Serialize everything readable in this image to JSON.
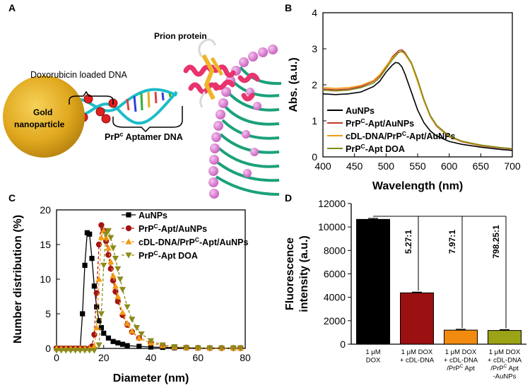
{
  "panels": {
    "a": "A",
    "b": "B",
    "c": "C",
    "d": "D"
  },
  "schematic": {
    "prion_label": "Prion protein",
    "dox_label": "Doxorubicin loaded DNA",
    "gold_line1": "Gold",
    "gold_line2": "nanoparticle",
    "aptamer_pre": "PrP",
    "aptamer_sup": "c",
    "aptamer_post": " Aptamer DNA"
  },
  "chart_data": [
    {
      "id": "B",
      "type": "line",
      "xlabel": "Wavelength (nm)",
      "ylabel": "Abs. (a.u.)",
      "xlim": [
        400,
        700
      ],
      "ylim": [
        0,
        4
      ],
      "xticks": [
        "400",
        "450",
        "500",
        "550",
        "600",
        "650",
        "700"
      ],
      "yticks": [
        "0",
        "1",
        "2",
        "3",
        "4"
      ],
      "legend_position": "bottom-left",
      "series": [
        {
          "name": "AuNPs",
          "label_pre": "AuNPs",
          "label_sup": "",
          "label_post": "",
          "color": "#000000",
          "x": [
            400,
            420,
            440,
            460,
            480,
            490,
            500,
            510,
            515,
            520,
            525,
            530,
            540,
            550,
            560,
            570,
            580,
            600,
            620,
            650,
            680,
            700
          ],
          "y": [
            1.75,
            1.73,
            1.75,
            1.8,
            1.95,
            2.1,
            2.35,
            2.55,
            2.62,
            2.6,
            2.5,
            2.3,
            1.8,
            1.3,
            0.95,
            0.72,
            0.58,
            0.43,
            0.35,
            0.27,
            0.21,
            0.18
          ]
        },
        {
          "name": "PrPC-Apt/AuNPs",
          "label_pre": "PrP",
          "label_sup": "C",
          "label_post": "-Apt/AuNPs",
          "color": "#c0392b",
          "x": [
            400,
            420,
            440,
            460,
            480,
            490,
            500,
            510,
            520,
            525,
            530,
            540,
            550,
            560,
            570,
            580,
            600,
            620,
            650,
            680,
            700
          ],
          "y": [
            1.88,
            1.86,
            1.88,
            1.95,
            2.1,
            2.25,
            2.5,
            2.78,
            2.95,
            2.97,
            2.9,
            2.6,
            2.1,
            1.55,
            1.12,
            0.85,
            0.56,
            0.42,
            0.31,
            0.25,
            0.22
          ]
        },
        {
          "name": "cDL-DNA/PrPC-Apt/AuNPs",
          "label_pre": "cDL-DNA/PrP",
          "label_sup": "C",
          "label_post": "-Apt/AuNPs",
          "color": "#f39c12",
          "x": [
            400,
            420,
            440,
            460,
            480,
            490,
            500,
            510,
            520,
            525,
            530,
            540,
            550,
            560,
            570,
            580,
            600,
            620,
            650,
            680,
            700
          ],
          "y": [
            1.92,
            1.9,
            1.92,
            1.98,
            2.12,
            2.28,
            2.52,
            2.75,
            2.9,
            2.92,
            2.85,
            2.58,
            2.08,
            1.55,
            1.13,
            0.86,
            0.57,
            0.43,
            0.32,
            0.26,
            0.23
          ]
        },
        {
          "name": "PrPC-Apt DOA",
          "label_pre": "PrP",
          "label_sup": "C",
          "label_post": "-Apt DOA",
          "color": "#7d8c1a",
          "x": [
            400,
            420,
            440,
            460,
            480,
            490,
            500,
            510,
            520,
            525,
            530,
            540,
            550,
            560,
            570,
            580,
            600,
            620,
            650,
            680,
            700
          ],
          "y": [
            1.85,
            1.83,
            1.85,
            1.92,
            2.05,
            2.2,
            2.45,
            2.7,
            2.9,
            2.93,
            2.88,
            2.62,
            2.15,
            1.6,
            1.15,
            0.88,
            0.58,
            0.44,
            0.33,
            0.26,
            0.23
          ]
        }
      ]
    },
    {
      "id": "C",
      "type": "line",
      "xlabel": "Diameter (nm)",
      "ylabel": "Number distribution (%)",
      "xlim": [
        0,
        80
      ],
      "ylim": [
        0,
        20
      ],
      "xticks": [
        "0",
        "20",
        "40",
        "60",
        "80"
      ],
      "yticks": [
        "0",
        "5",
        "10",
        "15",
        "20"
      ],
      "legend_position": "top-right",
      "series": [
        {
          "name": "AuNPs",
          "label_pre": "AuNPs",
          "label_sup": "",
          "label_post": "",
          "color": "#000000",
          "marker": "square",
          "x": [
            0,
            2,
            4,
            6,
            8,
            10,
            11,
            12,
            13,
            14,
            15,
            16,
            17,
            18,
            19,
            20,
            22,
            24,
            26,
            28,
            30,
            35,
            40,
            45,
            50,
            55,
            60,
            65,
            70,
            75,
            78
          ],
          "y": [
            0,
            0,
            0,
            0,
            0,
            0,
            5,
            12,
            16.7,
            16.5,
            13,
            9,
            6,
            4,
            3,
            2.2,
            1.5,
            1,
            0.8,
            0.6,
            0.4,
            0.3,
            0.2,
            0.15,
            0.1,
            0.1,
            0.05,
            0.05,
            0.05,
            0.05,
            0.05
          ]
        },
        {
          "name": "PrPC-Apt/AuNPs",
          "label_pre": "PrP",
          "label_sup": "C",
          "label_post": "-Apt/AuNPs",
          "color": "#a31515",
          "marker": "circle",
          "x": [
            0,
            2,
            4,
            6,
            8,
            10,
            12,
            14,
            15,
            16,
            17,
            18,
            19,
            20,
            21,
            22,
            23,
            24,
            25,
            26,
            28,
            30,
            32,
            35,
            40,
            45,
            50,
            55,
            60,
            65,
            70,
            75,
            78
          ],
          "y": [
            0,
            0,
            0,
            0,
            0,
            0,
            0,
            0,
            0.3,
            2,
            8,
            15,
            17.8,
            17,
            15.5,
            13.5,
            11.5,
            9.8,
            8.2,
            6.8,
            4.8,
            3.4,
            2.4,
            1.5,
            0.8,
            0.4,
            0.2,
            0.12,
            0.08,
            0.05,
            0.05,
            0.05,
            0.05
          ]
        },
        {
          "name": "cDL-DNA/PrPC-Apt/AuNPs",
          "label_pre": "cDL-DNA/PrP",
          "label_sup": "C",
          "label_post": "-Apt/AuNPs",
          "color": "#f39c12",
          "marker": "triangle-up",
          "x": [
            0,
            2,
            4,
            6,
            8,
            10,
            12,
            14,
            16,
            17,
            18,
            19,
            20,
            21,
            22,
            23,
            24,
            25,
            26,
            28,
            30,
            32,
            35,
            40,
            45,
            50,
            55,
            60,
            65,
            70,
            75,
            78
          ],
          "y": [
            0,
            0,
            0,
            0,
            0,
            0,
            0,
            0,
            0.3,
            3,
            10,
            16,
            17,
            16,
            14.5,
            12.5,
            10.5,
            9,
            7.5,
            5.2,
            3.6,
            2.5,
            1.5,
            0.8,
            0.4,
            0.2,
            0.12,
            0.08,
            0.05,
            0.05,
            0.05,
            0.05
          ]
        },
        {
          "name": "PrPC-Apt DOA",
          "label_pre": "PrP",
          "label_sup": "C",
          "label_post": "-Apt DOA",
          "color": "#8b8b1a",
          "marker": "triangle-down",
          "x": [
            0,
            2,
            4,
            6,
            8,
            10,
            12,
            14,
            16,
            18,
            19,
            20,
            21,
            22,
            23,
            24,
            25,
            26,
            27,
            28,
            30,
            32,
            34,
            36,
            40,
            45,
            50,
            55,
            60,
            65,
            70,
            75,
            78
          ],
          "y": [
            -0.3,
            -0.3,
            -0.3,
            -0.3,
            -0.3,
            -0.3,
            -0.3,
            -0.3,
            -0.3,
            0.5,
            5,
            12,
            16.5,
            17,
            16,
            14.5,
            13,
            11.5,
            10,
            8.5,
            6,
            4.2,
            3,
            2.1,
            1.1,
            0.5,
            0.25,
            0.12,
            0.08,
            0.05,
            0.05,
            0.05,
            0.05
          ]
        }
      ]
    },
    {
      "id": "D",
      "type": "bar",
      "xlabel": "",
      "ylabel_line1": "Fluorescence",
      "ylabel_line2": "intensity (a.u.)",
      "ylim": [
        0,
        12000
      ],
      "yticks": [
        "0",
        "2000",
        "4000",
        "6000",
        "8000",
        "10000",
        "12000"
      ],
      "categories": [
        {
          "lines": [
            {
              "pre": "1 μM",
              "sup": "",
              "post": ""
            },
            {
              "pre": "DOX",
              "sup": "",
              "post": ""
            }
          ]
        },
        {
          "lines": [
            {
              "pre": "1 μM DOX",
              "sup": "",
              "post": ""
            },
            {
              "pre": "+ cDL-DNA",
              "sup": "",
              "post": ""
            }
          ]
        },
        {
          "lines": [
            {
              "pre": "1 μM DOX",
              "sup": "",
              "post": ""
            },
            {
              "pre": "+ cDL-DNA",
              "sup": "",
              "post": ""
            },
            {
              "pre": "/PrP",
              "sup": "C",
              "post": " Apt"
            }
          ]
        },
        {
          "lines": [
            {
              "pre": "1 μM DOX",
              "sup": "",
              "post": ""
            },
            {
              "pre": "+ cDL-DNA",
              "sup": "",
              "post": ""
            },
            {
              "pre": "/PrP",
              "sup": "C",
              "post": " Apt"
            },
            {
              "pre": "-AuNPs",
              "sup": "",
              "post": ""
            }
          ]
        }
      ],
      "values": [
        10650,
        4380,
        1200,
        1170
      ],
      "errors": [
        80,
        60,
        70,
        70
      ],
      "colors": [
        "#000000",
        "#9b1111",
        "#f28a0f",
        "#9ba316"
      ],
      "ratios": [
        "5.27:1",
        "7.97:1",
        "798.25:1"
      ]
    }
  ]
}
